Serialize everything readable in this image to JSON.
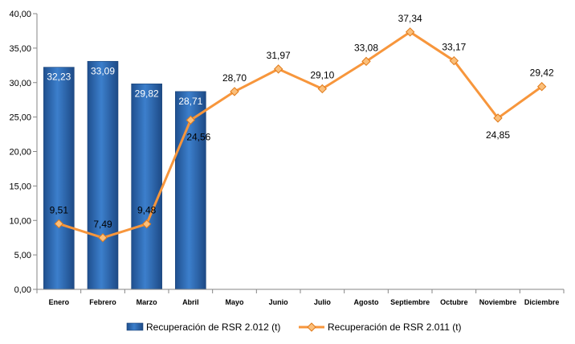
{
  "chart_data": {
    "type": "bar",
    "categories": [
      "Enero",
      "Febrero",
      "Marzo",
      "Abril",
      "Mayo",
      "Junio",
      "Julio",
      "Agosto",
      "Septiembre",
      "Octubre",
      "Noviembre",
      "Diciembre"
    ],
    "ylim": [
      0,
      40
    ],
    "yticks": [
      "0,00",
      "5,00",
      "10,00",
      "15,00",
      "20,00",
      "25,00",
      "30,00",
      "35,00",
      "40,00"
    ],
    "grid": false,
    "legend_position": "bottom",
    "series": [
      {
        "name": "Recuperación de RSR 2.012 (t)",
        "type": "bar",
        "color": "#2e6fba",
        "values": [
          32.23,
          33.09,
          29.82,
          28.71,
          null,
          null,
          null,
          null,
          null,
          null,
          null,
          null
        ],
        "labels": [
          "32,23",
          "33,09",
          "29,82",
          "28,71",
          "",
          "",
          "",
          "",
          "",
          "",
          "",
          ""
        ]
      },
      {
        "name": "Recuperación de RSR 2.011 (t)",
        "type": "line",
        "color": "#f7963c",
        "marker": "diamond",
        "values": [
          9.51,
          7.49,
          9.48,
          24.56,
          28.7,
          31.97,
          29.1,
          33.08,
          37.34,
          33.17,
          24.85,
          29.42
        ],
        "labels": [
          "9,51",
          "7,49",
          "9,48",
          "24,56",
          "28,70",
          "31,97",
          "29,10",
          "33,08",
          "37,34",
          "33,17",
          "24,85",
          "29,42"
        ]
      }
    ]
  }
}
